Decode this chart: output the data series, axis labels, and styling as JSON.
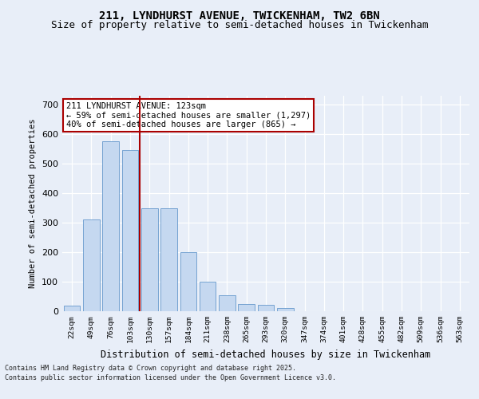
{
  "title_line1": "211, LYNDHURST AVENUE, TWICKENHAM, TW2 6BN",
  "title_line2": "Size of property relative to semi-detached houses in Twickenham",
  "xlabel": "Distribution of semi-detached houses by size in Twickenham",
  "ylabel": "Number of semi-detached properties",
  "categories": [
    "22sqm",
    "49sqm",
    "76sqm",
    "103sqm",
    "130sqm",
    "157sqm",
    "184sqm",
    "211sqm",
    "238sqm",
    "265sqm",
    "293sqm",
    "320sqm",
    "347sqm",
    "374sqm",
    "401sqm",
    "428sqm",
    "455sqm",
    "482sqm",
    "509sqm",
    "536sqm",
    "563sqm"
  ],
  "values": [
    20,
    310,
    575,
    545,
    350,
    350,
    200,
    100,
    55,
    25,
    22,
    10,
    0,
    0,
    0,
    0,
    0,
    0,
    0,
    0,
    0
  ],
  "bar_color": "#c5d8f0",
  "bar_edge_color": "#6699cc",
  "red_line_x": 3.5,
  "highlight_color": "#aa0000",
  "annotation_title": "211 LYNDHURST AVENUE: 123sqm",
  "annotation_line2": "← 59% of semi-detached houses are smaller (1,297)",
  "annotation_line3": "40% of semi-detached houses are larger (865) →",
  "annotation_box_color": "#ffffff",
  "annotation_box_edge": "#aa0000",
  "footer_line1": "Contains HM Land Registry data © Crown copyright and database right 2025.",
  "footer_line2": "Contains public sector information licensed under the Open Government Licence v3.0.",
  "ylim": [
    0,
    730
  ],
  "yticks": [
    0,
    100,
    200,
    300,
    400,
    500,
    600,
    700
  ],
  "background_color": "#e8eef8",
  "grid_color": "#ffffff",
  "title_fontsize": 10,
  "subtitle_fontsize": 9
}
